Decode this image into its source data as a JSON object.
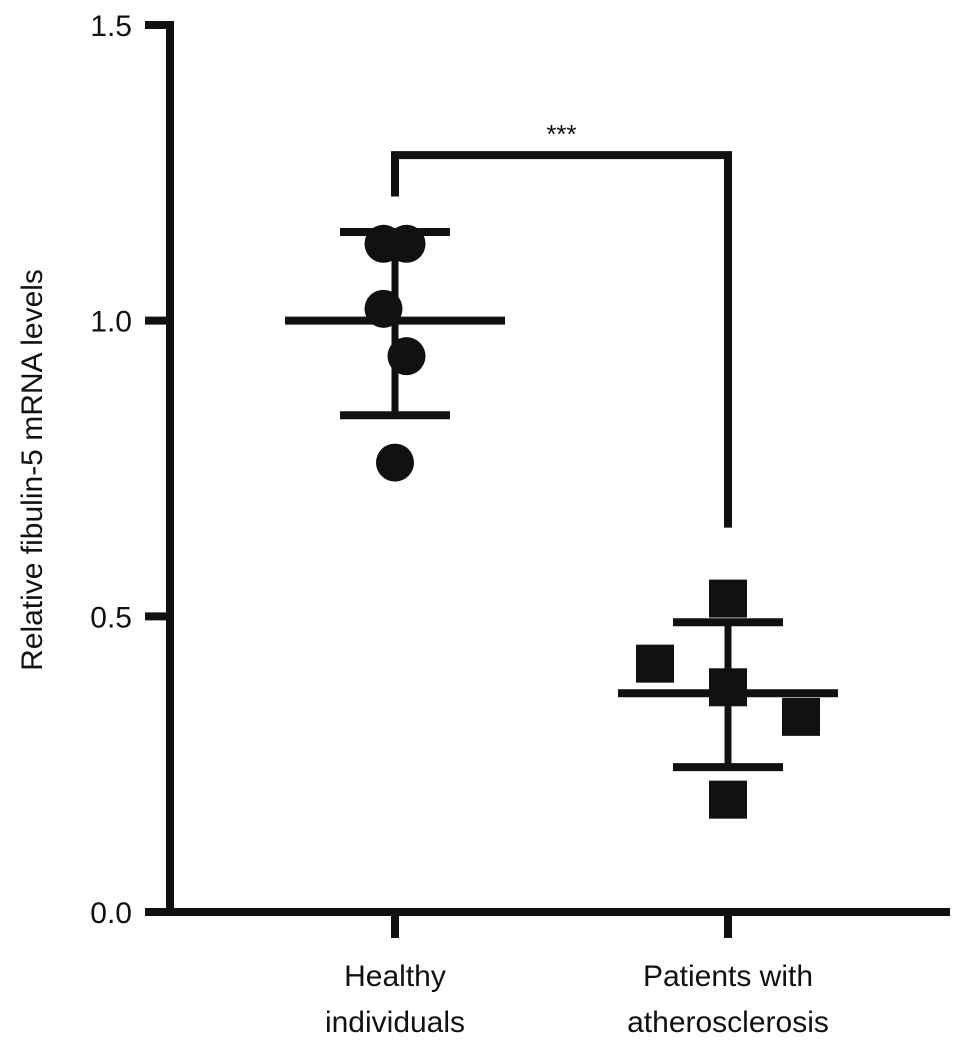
{
  "chart_data": {
    "type": "scatter",
    "title": "",
    "xlabel": "",
    "ylabel": "Relative  fibulin-5 mRNA levels",
    "ylim": [
      0,
      1.5
    ],
    "yticks": [
      "0.0",
      "0.5",
      "1.0",
      "1.5"
    ],
    "ytick_values": [
      0,
      0.5,
      1.0,
      1.5
    ],
    "grid": false,
    "categories": [
      {
        "line1": "Healthy",
        "line2": "individuals"
      },
      {
        "line1": "Patients with",
        "line2": "atherosclerosis"
      }
    ],
    "series": [
      {
        "name": "Healthy individuals",
        "marker": "circle",
        "values": [
          1.13,
          1.13,
          1.02,
          0.94,
          0.76
        ],
        "offsets": [
          -0.5,
          0.5,
          -0.5,
          0.5,
          0
        ],
        "mean": 1.0,
        "sd_upper": 1.15,
        "sd_lower": 0.84
      },
      {
        "name": "Patients with atherosclerosis",
        "marker": "square",
        "values": [
          0.53,
          0.42,
          0.38,
          0.33,
          0.19
        ],
        "offsets": [
          0,
          -1,
          0,
          1,
          0
        ],
        "mean": 0.37,
        "sd_upper": 0.49,
        "sd_lower": 0.245
      }
    ],
    "significance": {
      "label": "***",
      "bar_y": 1.28,
      "left_end": 1.21,
      "right_end": 0.65
    },
    "color": "#111111"
  }
}
